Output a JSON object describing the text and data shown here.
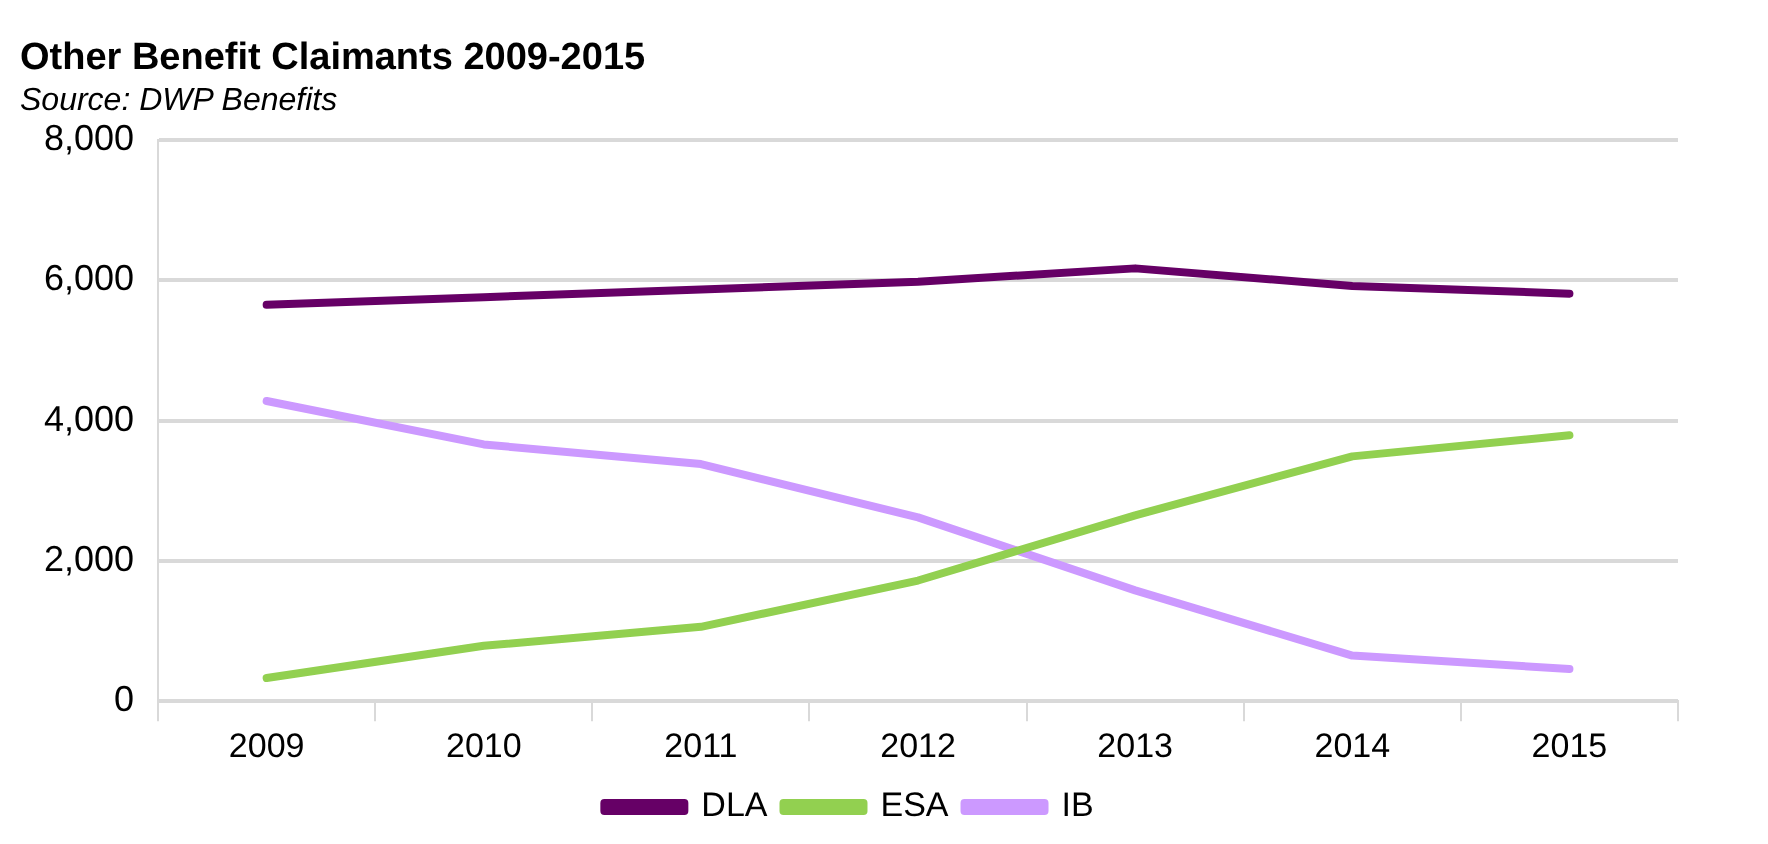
{
  "chart_data": {
    "type": "line",
    "title": "Other Benefit Claimants 2009-2015",
    "subtitle": "Source: DWP Benefits",
    "categories": [
      "2009",
      "2010",
      "2011",
      "2012",
      "2013",
      "2014",
      "2015"
    ],
    "series": [
      {
        "name": "DLA",
        "color": "#660066",
        "values": [
          5650,
          5760,
          5870,
          5980,
          6170,
          5920,
          5810
        ]
      },
      {
        "name": "ESA",
        "color": "#92d050",
        "values": [
          330,
          790,
          1060,
          1720,
          2650,
          3490,
          3790
        ]
      },
      {
        "name": "IB",
        "color": "#cc99ff",
        "values": [
          4280,
          3660,
          3380,
          2620,
          1580,
          650,
          460
        ]
      }
    ],
    "ylim": [
      0,
      8000
    ],
    "yticks": [
      0,
      {
        "value": 2000,
        "label": "2,000"
      },
      {
        "value": 4000,
        "label": "4,000"
      },
      {
        "value": 6000,
        "label": "6,000"
      },
      {
        "value": 8000,
        "label": "8,000"
      }
    ],
    "grid": "y",
    "legend": "bottom",
    "marker": "none",
    "line_style": "solid"
  }
}
